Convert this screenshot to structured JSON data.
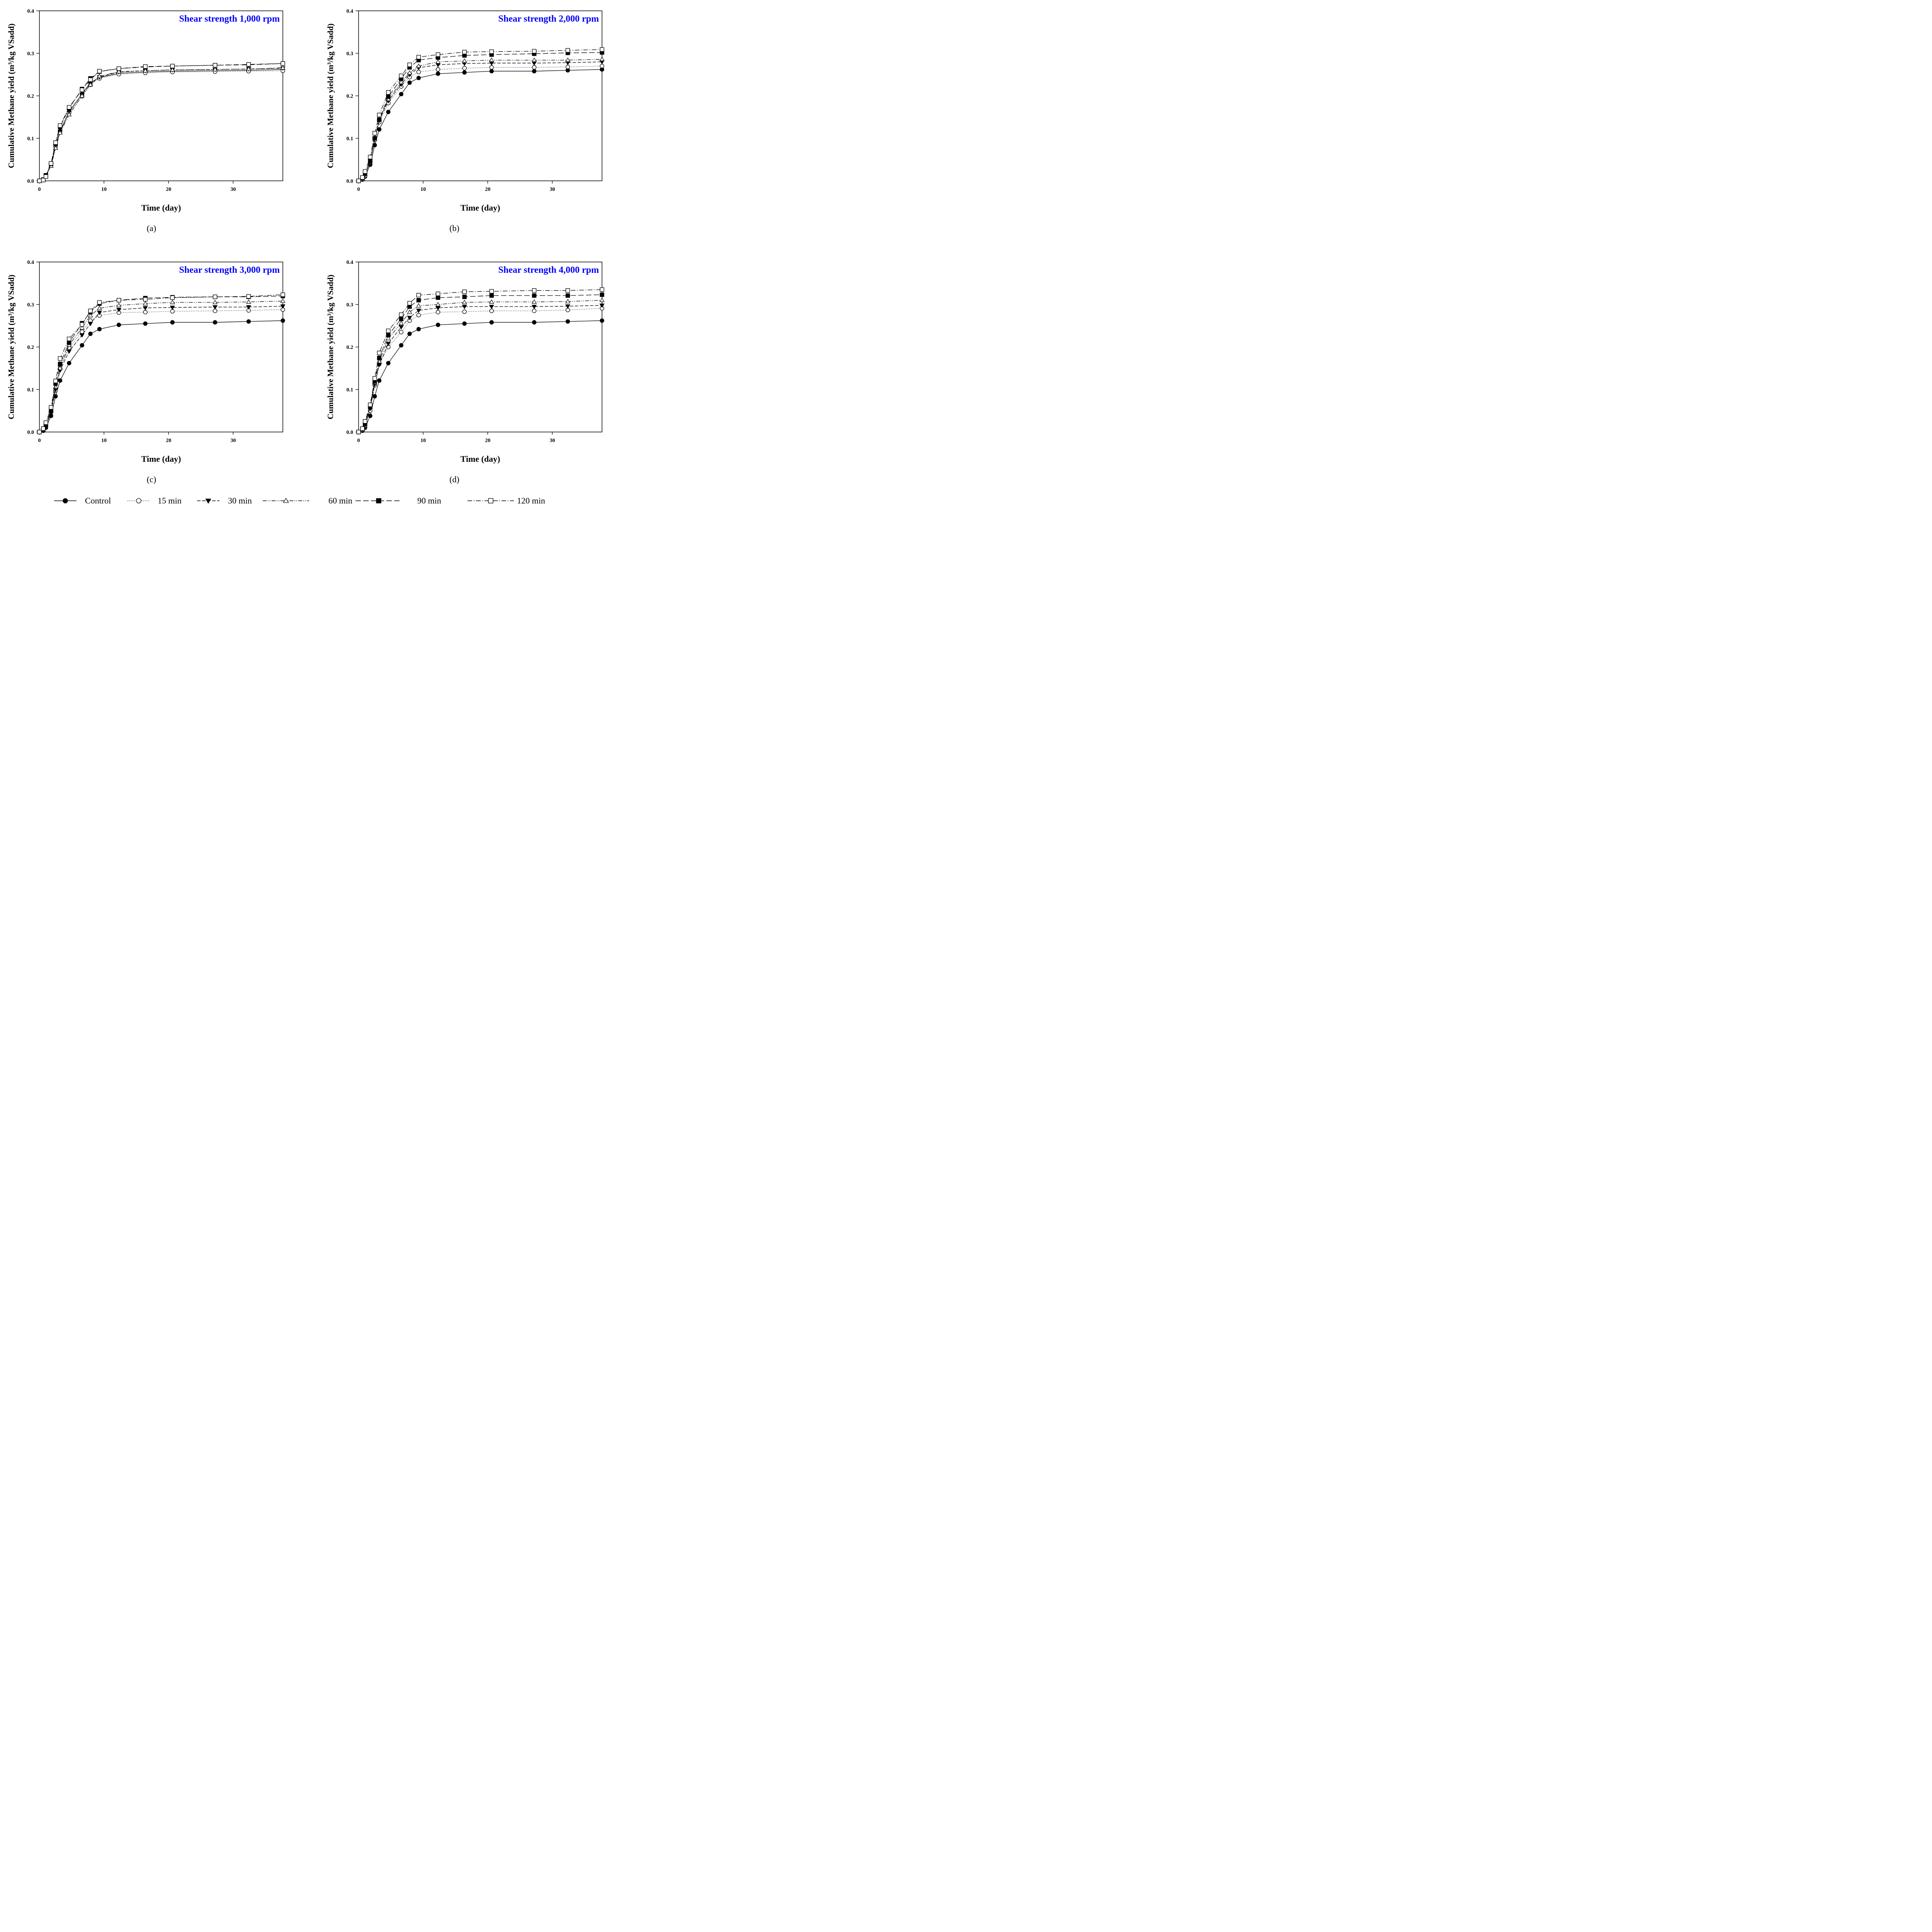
{
  "figure": {
    "legend": [
      {
        "name": "Control",
        "marker": "filled-circle",
        "dash": "solid"
      },
      {
        "name": "15 min",
        "marker": "open-circle",
        "dash": "dotted"
      },
      {
        "name": "30 min",
        "marker": "filled-triangle-down",
        "dash": "dashed"
      },
      {
        "name": "60 min",
        "marker": "open-triangle-up",
        "dash": "dash-dot-dot"
      },
      {
        "name": "90 min",
        "marker": "filled-square",
        "dash": "long-dash"
      },
      {
        "name": "120 min",
        "marker": "open-square",
        "dash": "dash-dot"
      }
    ],
    "title_color": "#0000FF"
  },
  "chart_data": [
    {
      "type": "line",
      "panel_label": "(a)",
      "title": "Shear strength 1,000 rpm",
      "xlabel": "Time (day)",
      "ylabel": "Cumulative Methane yield (m³/kg VSadd)",
      "xlim": [
        0,
        37.7
      ],
      "ylim": [
        0,
        0.4
      ],
      "xticks": [
        "0",
        "10",
        "20",
        "30"
      ],
      "yticks": [
        "0.0",
        "0.1",
        "0.2",
        "0.3",
        "0.4"
      ],
      "x": [
        0,
        0.6,
        1,
        1.8,
        2.5,
        3.2,
        4.6,
        6.6,
        7.9,
        9.3,
        12.3,
        16.4,
        20.6,
        27.2,
        32.4,
        37.7
      ],
      "series": [
        {
          "name": "Control",
          "values": [
            0,
            0.002,
            0.012,
            0.037,
            0.083,
            0.117,
            0.163,
            0.204,
            0.231,
            0.243,
            0.253,
            0.256,
            0.258,
            0.259,
            0.26,
            0.262
          ]
        },
        {
          "name": "15 min",
          "values": [
            0,
            0.002,
            0.011,
            0.036,
            0.08,
            0.115,
            0.16,
            0.199,
            0.226,
            0.241,
            0.251,
            0.254,
            0.256,
            0.257,
            0.258,
            0.259
          ]
        },
        {
          "name": "30 min",
          "values": [
            0,
            0.002,
            0.012,
            0.037,
            0.082,
            0.116,
            0.164,
            0.203,
            0.23,
            0.244,
            0.256,
            0.259,
            0.261,
            0.262,
            0.263,
            0.265
          ]
        },
        {
          "name": "60 min",
          "values": [
            0,
            0.002,
            0.011,
            0.035,
            0.077,
            0.113,
            0.156,
            0.2,
            0.226,
            0.246,
            0.257,
            0.259,
            0.261,
            0.262,
            0.263,
            0.266
          ]
        },
        {
          "name": "90 min",
          "values": [
            0,
            0.003,
            0.013,
            0.04,
            0.088,
            0.127,
            0.171,
            0.216,
            0.241,
            0.257,
            0.264,
            0.268,
            0.27,
            0.272,
            0.273,
            0.276
          ]
        },
        {
          "name": "120 min",
          "values": [
            0,
            0.002,
            0.01,
            0.041,
            0.09,
            0.13,
            0.173,
            0.214,
            0.238,
            0.258,
            0.264,
            0.269,
            0.27,
            0.272,
            0.274,
            0.276
          ]
        }
      ]
    },
    {
      "type": "line",
      "panel_label": "(b)",
      "title": "Shear strength 2,000 rpm",
      "xlabel": "Time (day)",
      "ylabel": "Cumulative Methane yield (m³/kg VSadd)",
      "xlim": [
        0,
        37.7
      ],
      "ylim": [
        0,
        0.4
      ],
      "xticks": [
        "0",
        "10",
        "20",
        "30"
      ],
      "yticks": [
        "0.0",
        "0.1",
        "0.2",
        "0.3",
        "0.4"
      ],
      "x": [
        0,
        0.6,
        1,
        1.8,
        2.5,
        3.2,
        4.6,
        6.6,
        7.9,
        9.3,
        12.3,
        16.4,
        20.6,
        27.2,
        32.4,
        37.7
      ],
      "series": [
        {
          "name": "Control",
          "values": [
            0,
            0.003,
            0.01,
            0.038,
            0.084,
            0.121,
            0.162,
            0.204,
            0.231,
            0.242,
            0.252,
            0.255,
            0.258,
            0.258,
            0.26,
            0.262
          ]
        },
        {
          "name": "15 min",
          "values": [
            0,
            0.004,
            0.012,
            0.044,
            0.096,
            0.138,
            0.183,
            0.222,
            0.244,
            0.256,
            0.262,
            0.265,
            0.267,
            0.267,
            0.268,
            0.27
          ]
        },
        {
          "name": "30 min",
          "values": [
            0,
            0.005,
            0.014,
            0.046,
            0.098,
            0.142,
            0.188,
            0.227,
            0.25,
            0.266,
            0.273,
            0.276,
            0.277,
            0.277,
            0.278,
            0.28
          ]
        },
        {
          "name": "60 min",
          "values": [
            0,
            0.006,
            0.016,
            0.048,
            0.101,
            0.145,
            0.192,
            0.232,
            0.254,
            0.27,
            0.28,
            0.282,
            0.284,
            0.284,
            0.284,
            0.286
          ]
        },
        {
          "name": "90 min",
          "values": [
            0,
            0.007,
            0.018,
            0.046,
            0.1,
            0.144,
            0.198,
            0.24,
            0.267,
            0.284,
            0.29,
            0.295,
            0.297,
            0.299,
            0.301,
            0.302
          ]
        },
        {
          "name": "120 min",
          "values": [
            0,
            0.008,
            0.022,
            0.056,
            0.112,
            0.155,
            0.208,
            0.247,
            0.273,
            0.291,
            0.297,
            0.303,
            0.304,
            0.305,
            0.307,
            0.309
          ]
        }
      ]
    },
    {
      "type": "line",
      "panel_label": "(c)",
      "title": "Shear strength 3,000 rpm",
      "xlabel": "Time (day)",
      "ylabel": "Cumulative Methane yield (m³/kg VSadd)",
      "xlim": [
        0,
        37.7
      ],
      "ylim": [
        0,
        0.4
      ],
      "xticks": [
        "0",
        "10",
        "20",
        "30"
      ],
      "yticks": [
        "0.0",
        "0.1",
        "0.2",
        "0.3",
        "0.4"
      ],
      "x": [
        0,
        0.6,
        1,
        1.8,
        2.5,
        3.2,
        4.6,
        6.6,
        7.9,
        9.3,
        12.3,
        16.4,
        20.6,
        27.2,
        32.4,
        37.7
      ],
      "series": [
        {
          "name": "Control",
          "values": [
            0,
            0.003,
            0.01,
            0.038,
            0.084,
            0.121,
            0.162,
            0.204,
            0.231,
            0.242,
            0.252,
            0.255,
            0.258,
            0.258,
            0.26,
            0.262
          ]
        },
        {
          "name": "15 min",
          "values": [
            0,
            0.005,
            0.015,
            0.046,
            0.098,
            0.15,
            0.198,
            0.236,
            0.262,
            0.274,
            0.281,
            0.282,
            0.284,
            0.285,
            0.286,
            0.288
          ]
        },
        {
          "name": "30 min",
          "values": [
            0,
            0.005,
            0.014,
            0.045,
            0.1,
            0.145,
            0.19,
            0.228,
            0.255,
            0.281,
            0.288,
            0.292,
            0.293,
            0.294,
            0.294,
            0.296
          ]
        },
        {
          "name": "60 min",
          "values": [
            0,
            0.006,
            0.016,
            0.05,
            0.106,
            0.15,
            0.205,
            0.245,
            0.274,
            0.291,
            0.298,
            0.302,
            0.305,
            0.305,
            0.306,
            0.308
          ]
        },
        {
          "name": "90 min",
          "values": [
            0,
            0.008,
            0.018,
            0.052,
            0.114,
            0.16,
            0.21,
            0.256,
            0.282,
            0.302,
            0.31,
            0.315,
            0.317,
            0.318,
            0.318,
            0.32
          ]
        },
        {
          "name": "120 min",
          "values": [
            0,
            0.008,
            0.022,
            0.058,
            0.12,
            0.173,
            0.219,
            0.253,
            0.285,
            0.305,
            0.31,
            0.312,
            0.316,
            0.318,
            0.319,
            0.323
          ]
        }
      ]
    },
    {
      "type": "line",
      "panel_label": "(d)",
      "title": "Shear strength 4,000 rpm",
      "xlabel": "Time (day)",
      "ylabel": "Cumulative Methane yield (m³/kg VSadd)",
      "xlim": [
        0,
        37.7
      ],
      "ylim": [
        0,
        0.4
      ],
      "xticks": [
        "0",
        "10",
        "20",
        "30"
      ],
      "yticks": [
        "0.0",
        "0.1",
        "0.2",
        "0.3",
        "0.4"
      ],
      "x": [
        0,
        0.6,
        1,
        1.8,
        2.5,
        3.2,
        4.6,
        6.6,
        7.9,
        9.3,
        12.3,
        16.4,
        20.6,
        27.2,
        32.4,
        37.7
      ],
      "series": [
        {
          "name": "Control",
          "values": [
            0,
            0.003,
            0.01,
            0.038,
            0.084,
            0.121,
            0.162,
            0.204,
            0.231,
            0.242,
            0.252,
            0.255,
            0.258,
            0.258,
            0.26,
            0.262
          ]
        },
        {
          "name": "15 min",
          "values": [
            0,
            0.005,
            0.015,
            0.05,
            0.11,
            0.16,
            0.2,
            0.235,
            0.262,
            0.275,
            0.282,
            0.283,
            0.285,
            0.285,
            0.287,
            0.291
          ]
        },
        {
          "name": "30 min",
          "values": [
            0,
            0.006,
            0.016,
            0.055,
            0.112,
            0.158,
            0.208,
            0.247,
            0.269,
            0.286,
            0.292,
            0.295,
            0.295,
            0.295,
            0.296,
            0.298
          ]
        },
        {
          "name": "60 min",
          "values": [
            0,
            0.007,
            0.018,
            0.058,
            0.116,
            0.166,
            0.22,
            0.256,
            0.282,
            0.297,
            0.3,
            0.305,
            0.306,
            0.306,
            0.307,
            0.31
          ]
        },
        {
          "name": "90 min",
          "values": [
            0,
            0.008,
            0.02,
            0.06,
            0.119,
            0.174,
            0.228,
            0.266,
            0.295,
            0.31,
            0.316,
            0.318,
            0.321,
            0.321,
            0.321,
            0.323
          ]
        },
        {
          "name": "120 min",
          "values": [
            0,
            0.008,
            0.025,
            0.064,
            0.126,
            0.186,
            0.238,
            0.276,
            0.303,
            0.322,
            0.325,
            0.33,
            0.331,
            0.333,
            0.333,
            0.335
          ]
        }
      ]
    }
  ]
}
